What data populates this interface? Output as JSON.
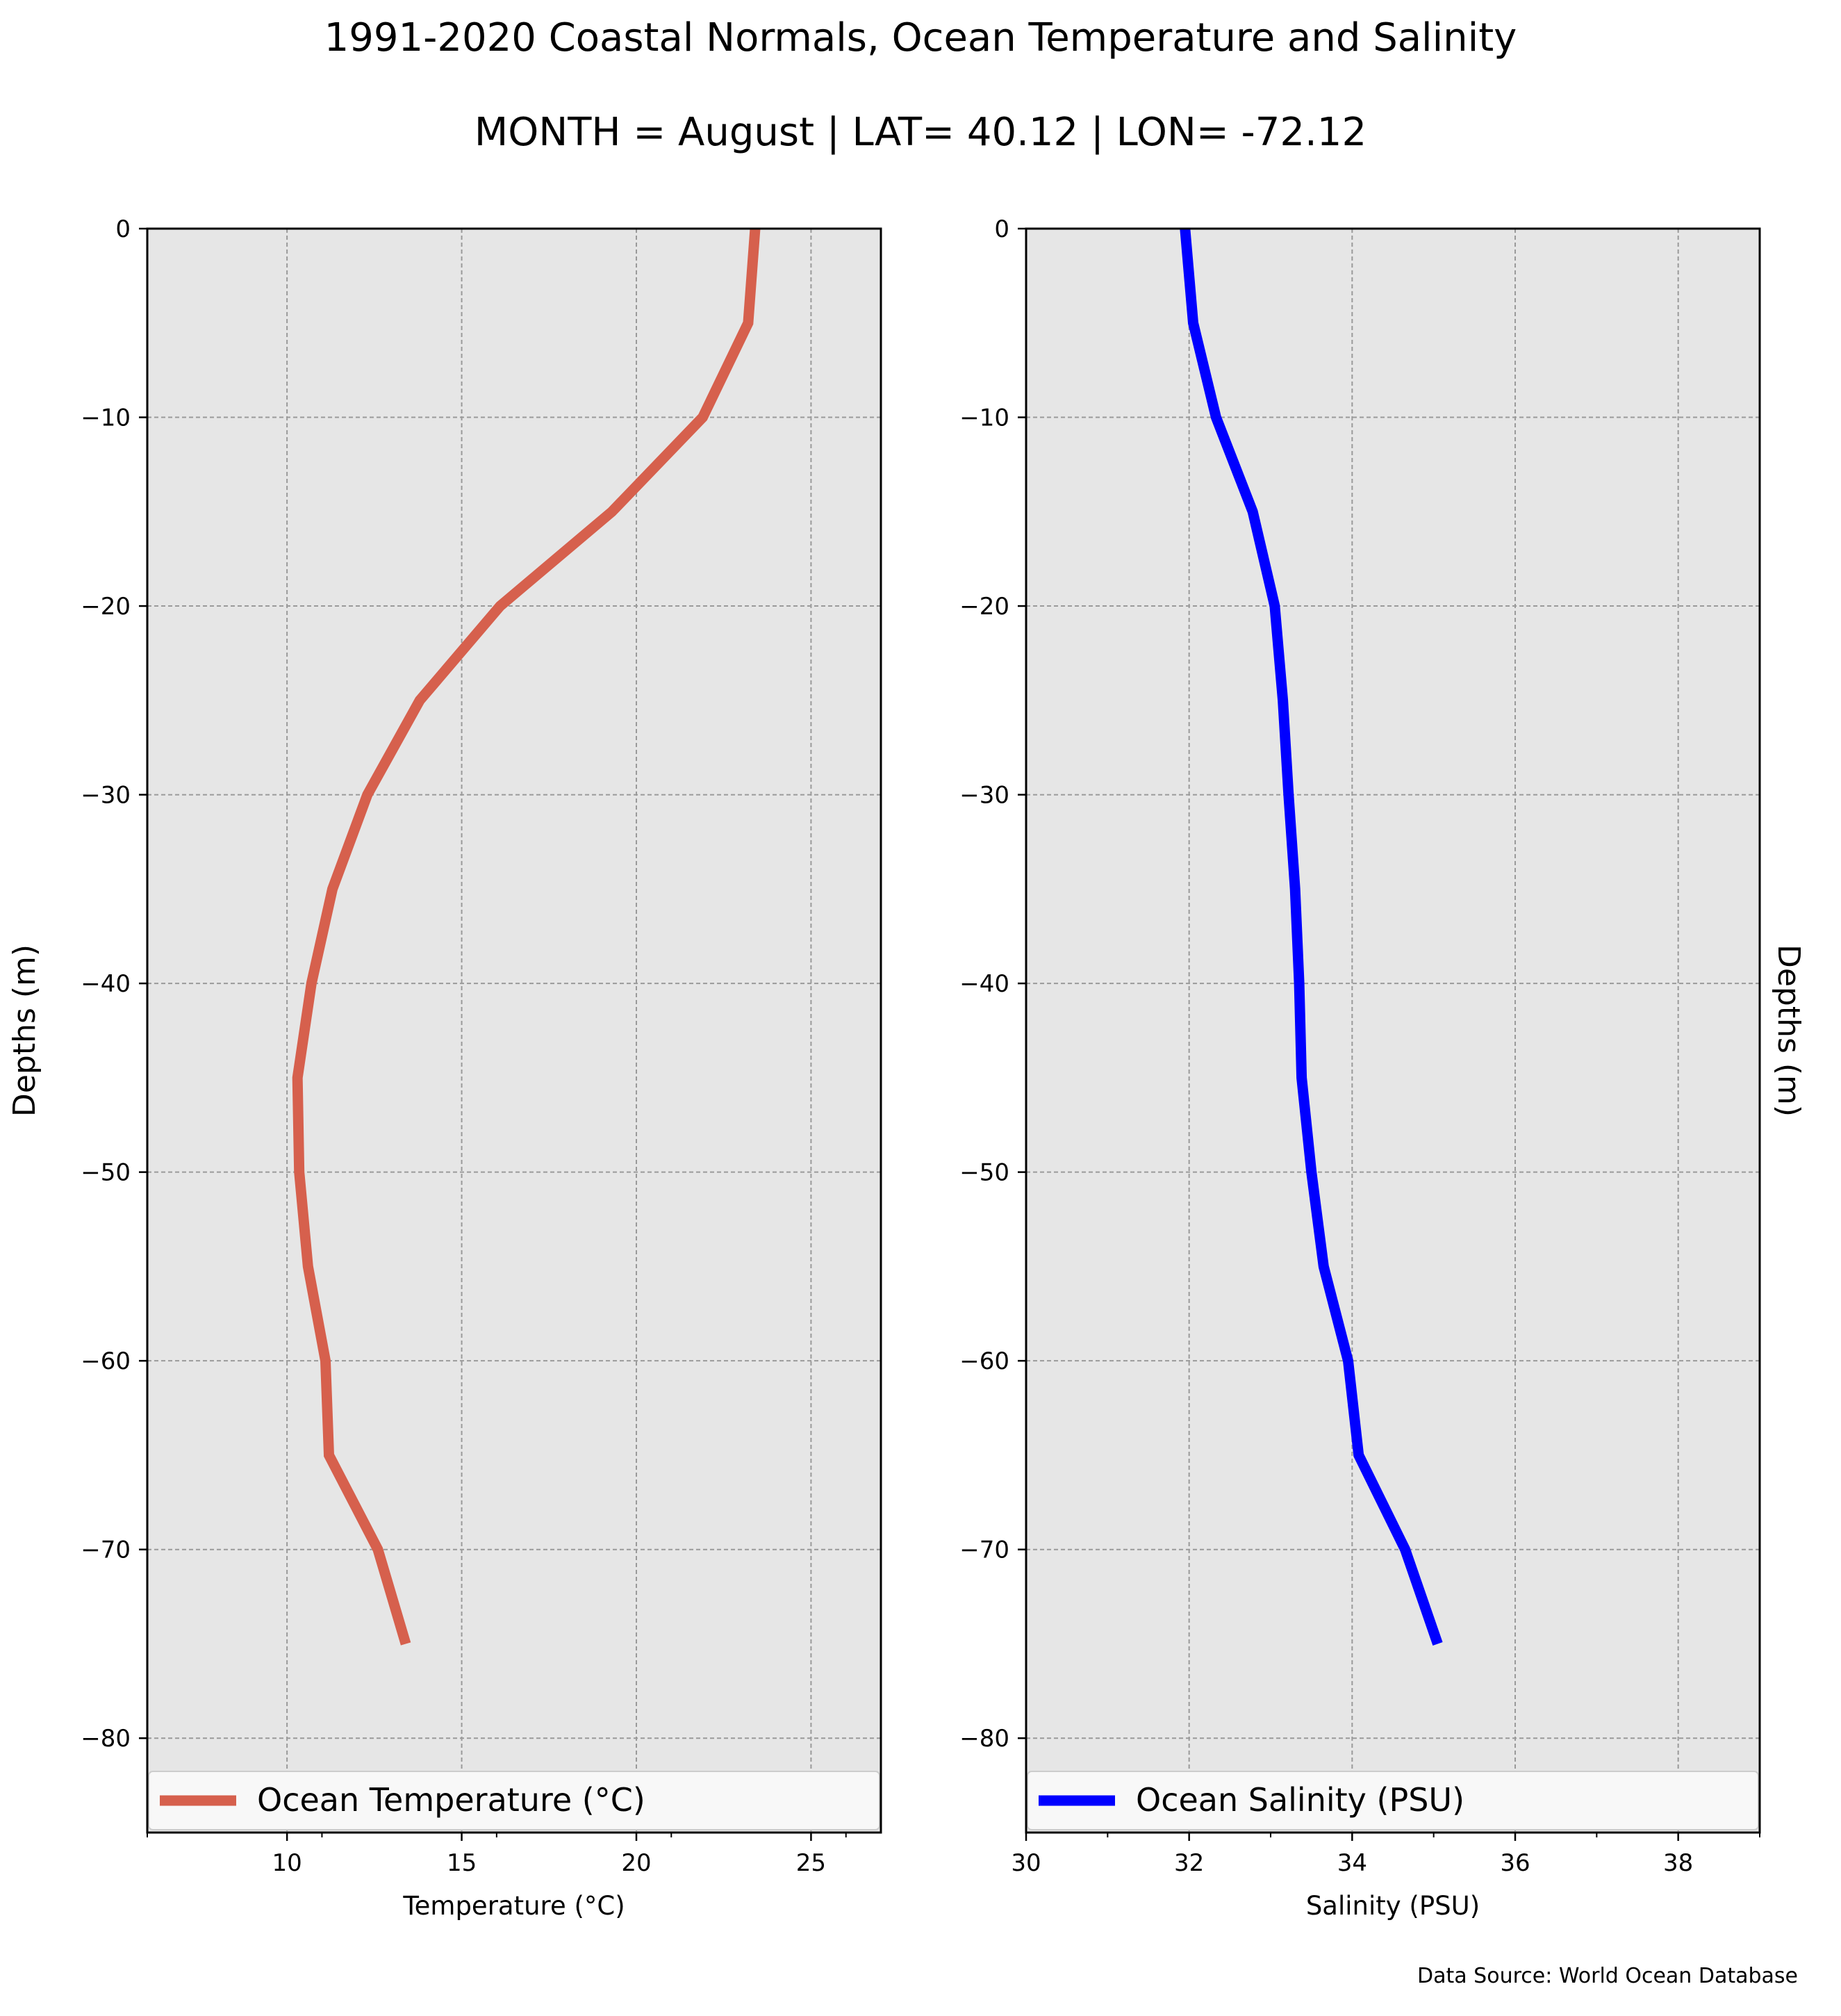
{
  "figure": {
    "title_line1": "1991-2020 Coastal Normals, Ocean Temperature and Salinity",
    "title_line2": "MONTH = August | LAT= 40.12 | LON= -72.12",
    "source": "Data Source: World Ocean Database",
    "background": "#ffffff",
    "panel_background": "#e6e6e6"
  },
  "chart_data": [
    {
      "type": "line",
      "xlabel": "Temperature ($^\\circ$C)",
      "xlabel_display": "Temperature (°C)",
      "ylabel": "Depths (m)",
      "xlim": [
        6,
        27
      ],
      "ylim": [
        -85,
        0
      ],
      "xticks": [
        10,
        15,
        20,
        25
      ],
      "xminor": [
        6,
        11,
        16,
        21,
        26
      ],
      "yticks": [
        0,
        -10,
        -20,
        -30,
        -40,
        -50,
        -60,
        -70,
        -80
      ],
      "ytick_labels": [
        "0",
        "−10",
        "−20",
        "−30",
        "−40",
        "−50",
        "−60",
        "−70",
        "−80"
      ],
      "xtick_labels": [
        "10",
        "15",
        "20",
        "25"
      ],
      "grid": true,
      "legend_position": "bottom",
      "ylabel_side": "left",
      "series": [
        {
          "name": "Ocean Temperature (°C)",
          "color": "#d6604d",
          "x": [
            23.4,
            23.2,
            21.9,
            19.3,
            16.1,
            13.8,
            12.3,
            11.3,
            10.7,
            10.3,
            10.35,
            10.6,
            11.1,
            11.2,
            12.6,
            13.4
          ],
          "y": [
            0,
            -5,
            -10,
            -15,
            -20,
            -25,
            -30,
            -35,
            -40,
            -45,
            -50,
            -55,
            -60,
            -65,
            -70,
            -75
          ]
        }
      ]
    },
    {
      "type": "line",
      "xlabel": "Salinity (PSU)",
      "ylabel": "Depths (m)",
      "xlim": [
        30,
        39
      ],
      "ylim": [
        -85,
        0
      ],
      "xticks": [
        30,
        32,
        34,
        36,
        38
      ],
      "xtick_labels": [
        "30",
        "32",
        "34",
        "36",
        "38"
      ],
      "xminor": [
        31,
        33,
        35,
        37,
        39
      ],
      "yticks": [
        0,
        -10,
        -20,
        -30,
        -40,
        -50,
        -60,
        -70,
        -80
      ],
      "ytick_labels": [
        "0",
        "−10",
        "−20",
        "−30",
        "−40",
        "−50",
        "−60",
        "−70",
        "−80"
      ],
      "grid": true,
      "legend_position": "bottom",
      "ylabel_side": "right",
      "series": [
        {
          "name": "Ocean Salinity (PSU)",
          "color": "#0000ff",
          "x": [
            31.95,
            32.05,
            32.33,
            32.78,
            33.05,
            33.15,
            33.22,
            33.3,
            33.35,
            33.38,
            33.5,
            33.65,
            33.95,
            34.08,
            34.65,
            35.05
          ],
          "y": [
            0,
            -5,
            -10,
            -15,
            -20,
            -25,
            -30,
            -35,
            -40,
            -45,
            -50,
            -55,
            -60,
            -65,
            -70,
            -75
          ]
        }
      ]
    }
  ]
}
